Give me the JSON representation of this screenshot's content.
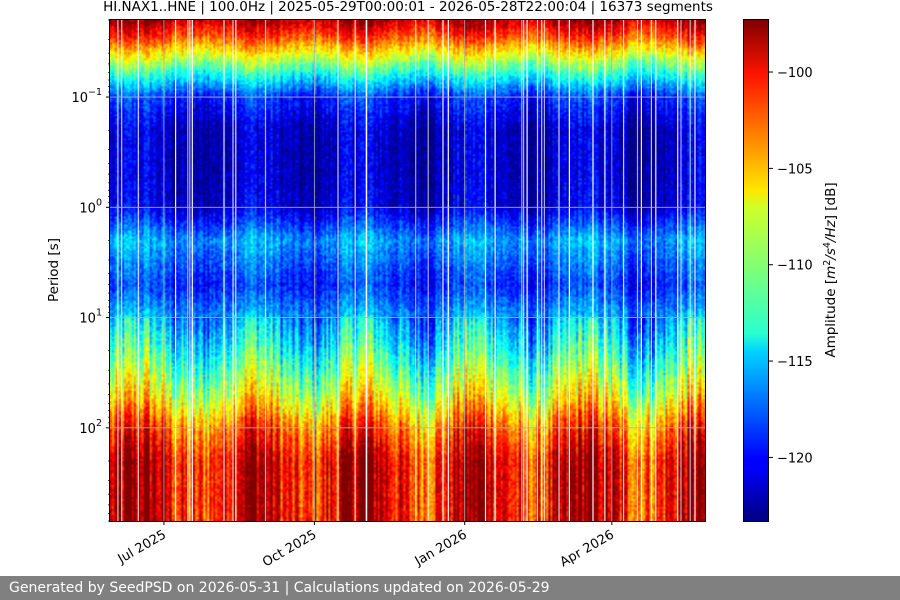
{
  "chart_data": {
    "type": "heatmap",
    "title": "HI.NAX1..HNE | 100.0Hz | 2025-05-29T00:00:01 - 2026-05-28T22:00:04 | 16373 segments",
    "xlabel": "",
    "ylabel": "Period [s]",
    "y_scale": "log",
    "y_inverted": true,
    "ylim": [
      0.02,
      700
    ],
    "xlim": [
      "2025-05-29",
      "2026-05-28"
    ],
    "x_ticks": [
      {
        "date": "2025-07-01",
        "label": "Jul 2025"
      },
      {
        "date": "2025-10-01",
        "label": "Oct 2025"
      },
      {
        "date": "2026-01-01",
        "label": "Jan 2026"
      },
      {
        "date": "2026-04-01",
        "label": "Apr 2026"
      }
    ],
    "y_ticks": [
      {
        "value": 0.1,
        "base": "10",
        "exp": "−1"
      },
      {
        "value": 1,
        "base": "10",
        "exp": "0"
      },
      {
        "value": 10,
        "base": "10",
        "exp": "1"
      },
      {
        "value": 100,
        "base": "10",
        "exp": "2"
      }
    ],
    "grid": true,
    "colormap": "jet",
    "colorbar": {
      "label": "Amplitude [m²/s⁴/Hz] [dB]",
      "label_parts": {
        "pre": "Amplitude [",
        "m": "m",
        "e2": "2",
        "mid": "/s",
        "e4": "4",
        "hz": "/Hz",
        "post": "] [dB]"
      },
      "range": [
        -123.3,
        -97.3
      ],
      "ticks": [
        -100,
        -105,
        -110,
        -115,
        -120
      ],
      "tick_labels": [
        "−100",
        "−105",
        "−110",
        "−115",
        "−120"
      ]
    },
    "profile_period_s": [
      0.02,
      0.03,
      0.05,
      0.1,
      0.2,
      0.5,
      1,
      2,
      5,
      10,
      20,
      50,
      100,
      200,
      500
    ],
    "profile_median_db": [
      -98.5,
      -103,
      -110,
      -119,
      -121.5,
      -121.5,
      -121,
      -116,
      -119,
      -116,
      -113,
      -108,
      -103,
      -100,
      -100
    ]
  },
  "footer": {
    "text": "Generated by SeedPSD on 2026-05-31 | Calculations updated on 2026-05-29"
  }
}
